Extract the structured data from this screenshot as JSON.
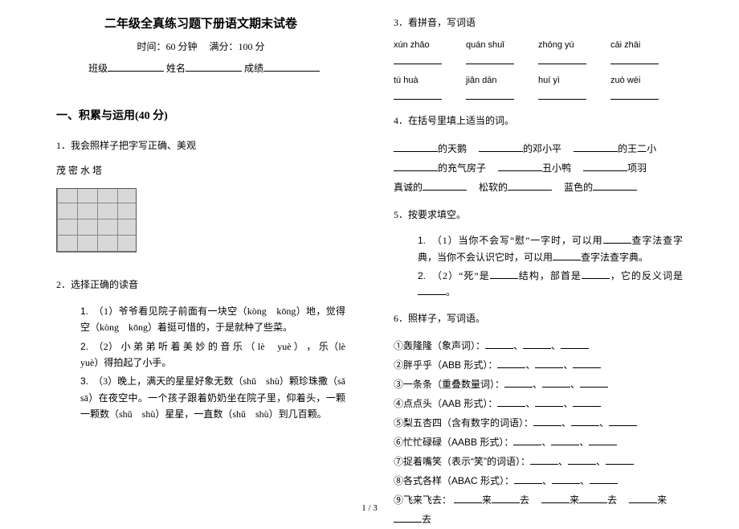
{
  "header": {
    "title": "二年级全真练习题下册语文期末试卷",
    "time_label": "时间：60 分钟",
    "score_label": "满分：100 分",
    "class_label": "班级",
    "name_label": "姓名",
    "grade_label": "成绩"
  },
  "section1": {
    "heading": "一、积累与运用(40 分)",
    "q1": {
      "num": "1．",
      "text": "我会照样子把字写正确、美观",
      "chars": "茂 密  水  塔"
    },
    "q2": {
      "num": "2．",
      "text": "选择正确的读音",
      "items": [
        "（1）爷爷看见院子前面有一块空（kòng　kōng）地，觉得空（kòng　kōng）着挺可惜的，于是就种了些菜。",
        "（2） 小 弟 弟 听 着 美 妙 的 音 乐 （ lè　 yuè ） ， 乐（lè　yuè）得拍起了小手。",
        "（3）晚上，满天的星星好象无数（shǔ　shù）颗珍珠撒（sǎ　sā）在夜空中。一个孩子跟着奶奶坐在院子里，仰着头，一颗一颗数（shǔ　shù）星星，一直数（shǔ　shù）到几百颗。"
      ]
    },
    "q3": {
      "num": "3．",
      "text": "看拼音，写词语",
      "pinyin_rows": [
        [
          "xún zhǎo",
          "quán shuǐ",
          "zhōng yú",
          "cāi zhāi"
        ],
        [
          "tú huà",
          "jiǎn dān",
          "huí yì",
          "zuò wèi"
        ]
      ]
    },
    "q4": {
      "num": "4．",
      "text": "在括号里填上适当的词。",
      "lines": [
        [
          "的天鹅",
          "的邓小平",
          "的王二小"
        ],
        [
          "的充气房子",
          "丑小鸭",
          "项羽"
        ],
        [
          "真诚的",
          "松软的",
          "蓝色的"
        ]
      ]
    },
    "q5": {
      "num": "5．",
      "text": "按要求填空。",
      "items": [
        {
          "n": "1.",
          "t1": "（1）当你不会写“慰”一字时，可以用",
          "t2": "查字法查字典，当你不会认识它时，可以用",
          "t3": "查字法查字典。"
        },
        {
          "n": "2.",
          "t1": "（2）“死”是",
          "t2": "结构，部首是",
          "t3": "，它的反义词是",
          "t4": "。"
        }
      ]
    },
    "q6": {
      "num": "6．",
      "text": "照样子，写词语。",
      "items": [
        "①轰隆隆（象声词）：",
        "②胖乎乎（ABB 形式）：",
        "③一条条（重叠数量词）：",
        "④点点头（AAB 形式）：",
        "⑤梨五杏四（含有数字的词语）：",
        "⑥忙忙碌碌（AABB 形式）：",
        "⑦捉着嘴笑（表示“笑”的词语）：",
        "⑧各式各样（ABAC 形式）：",
        "⑨飞来飞去："
      ],
      "item9_parts": [
        "来",
        "去",
        "来",
        "去",
        "来",
        "去"
      ]
    }
  },
  "footer": {
    "page": "1 / 3"
  }
}
